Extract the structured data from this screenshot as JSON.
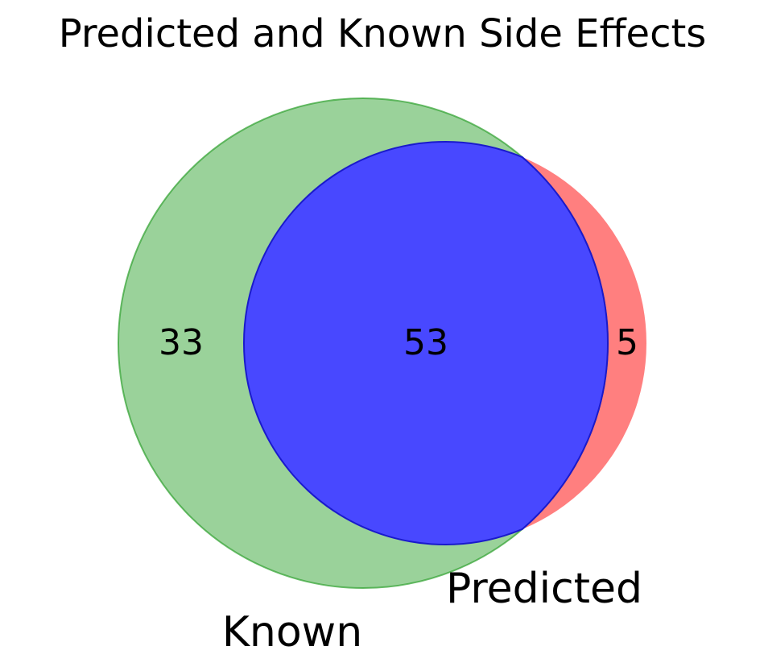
{
  "chart_data": {
    "type": "venn",
    "title": "Predicted and Known Side Effects",
    "sets": [
      {
        "name": "Known",
        "color": "#2ca02c"
      },
      {
        "name": "Predicted",
        "color": "#ff0000"
      }
    ],
    "regions": {
      "known_only": 33,
      "both": 53,
      "predicted_only": 5
    },
    "overlap_color": "#0000ff"
  }
}
